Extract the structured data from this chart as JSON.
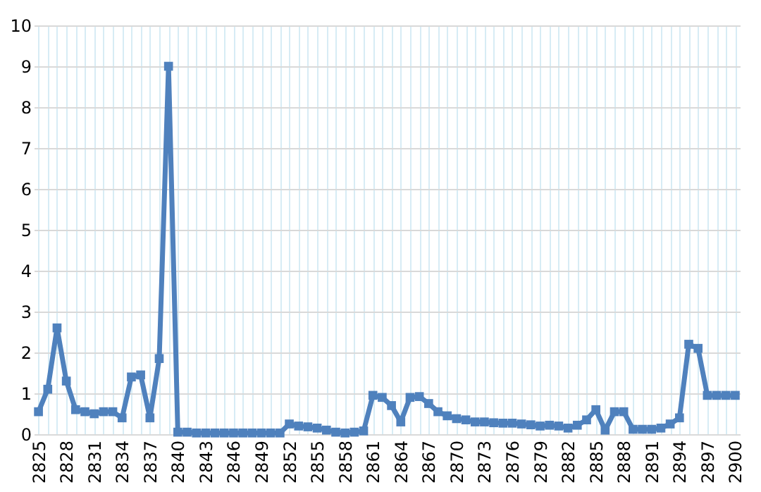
{
  "chart_data": {
    "type": "line",
    "categories": [
      "2825",
      null,
      null,
      "2828",
      null,
      null,
      "2831",
      null,
      null,
      "2834",
      null,
      null,
      "2837",
      null,
      null,
      "2840",
      null,
      null,
      "2843",
      null,
      null,
      "2846",
      null,
      null,
      "2849",
      null,
      null,
      "2852",
      null,
      null,
      "2855",
      null,
      null,
      "2858",
      null,
      null,
      "2861",
      null,
      null,
      "2864",
      null,
      null,
      "2867",
      null,
      null,
      "2870",
      null,
      null,
      "2873",
      null,
      null,
      "2876",
      null,
      null,
      "2879",
      null,
      null,
      "2882",
      null,
      null,
      "2885",
      null,
      null,
      "2888",
      null,
      null,
      "2891",
      null,
      null,
      "2894",
      null,
      null,
      "2897",
      null,
      null,
      "2900"
    ],
    "series": [
      {
        "color": "#4f81bd",
        "values": [
          0.55,
          1.1,
          2.6,
          1.3,
          0.6,
          0.55,
          0.5,
          0.55,
          0.55,
          0.4,
          1.4,
          1.45,
          0.4,
          1.85,
          9.0,
          0.05,
          0.05,
          0.03,
          0.03,
          0.03,
          0.03,
          0.03,
          0.03,
          0.03,
          0.03,
          0.03,
          0.03,
          0.25,
          0.2,
          0.18,
          0.15,
          0.1,
          0.05,
          0.03,
          0.05,
          0.08,
          0.95,
          0.9,
          0.7,
          0.3,
          0.9,
          0.92,
          0.75,
          0.55,
          0.45,
          0.38,
          0.35,
          0.3,
          0.3,
          0.28,
          0.27,
          0.27,
          0.25,
          0.23,
          0.2,
          0.22,
          0.2,
          0.15,
          0.22,
          0.35,
          0.6,
          0.1,
          0.55,
          0.55,
          0.12,
          0.12,
          0.12,
          0.15,
          0.25,
          0.4,
          2.2,
          2.1,
          0.95,
          0.95,
          0.95,
          0.95
        ]
      }
    ],
    "ylim": [
      0,
      10
    ],
    "yticks": [
      0,
      1,
      2,
      3,
      4,
      5,
      6,
      7,
      8,
      9,
      10
    ],
    "grid": true,
    "marker": "square",
    "line_style": "solid"
  }
}
